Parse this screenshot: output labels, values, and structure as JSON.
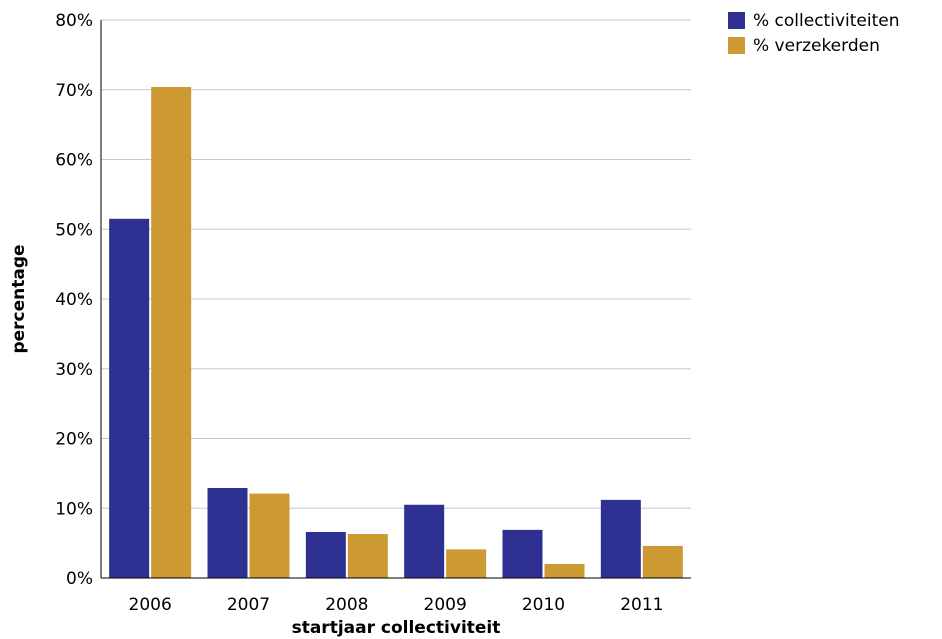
{
  "chart_data": {
    "type": "bar",
    "title": "",
    "xlabel": "startjaar collectiviteit",
    "ylabel": "percentage",
    "categories": [
      "2006",
      "2007",
      "2008",
      "2009",
      "2010",
      "2011"
    ],
    "series": [
      {
        "name": "% collectiviteiten",
        "color": "#2e3192",
        "values": [
          51.5,
          12.9,
          6.6,
          10.5,
          6.9,
          11.2
        ]
      },
      {
        "name": "% verzekerden",
        "color": "#cc9933",
        "values": [
          70.4,
          12.1,
          6.3,
          4.1,
          2.0,
          4.6
        ]
      }
    ],
    "ylim": [
      0,
      80
    ],
    "yticks": [
      0,
      10,
      20,
      30,
      40,
      50,
      60,
      70,
      80
    ],
    "ytick_labels": [
      "0%",
      "10%",
      "20%",
      "30%",
      "40%",
      "50%",
      "60%",
      "70%",
      "80%"
    ],
    "grid": true,
    "legend_position": "top-right"
  }
}
